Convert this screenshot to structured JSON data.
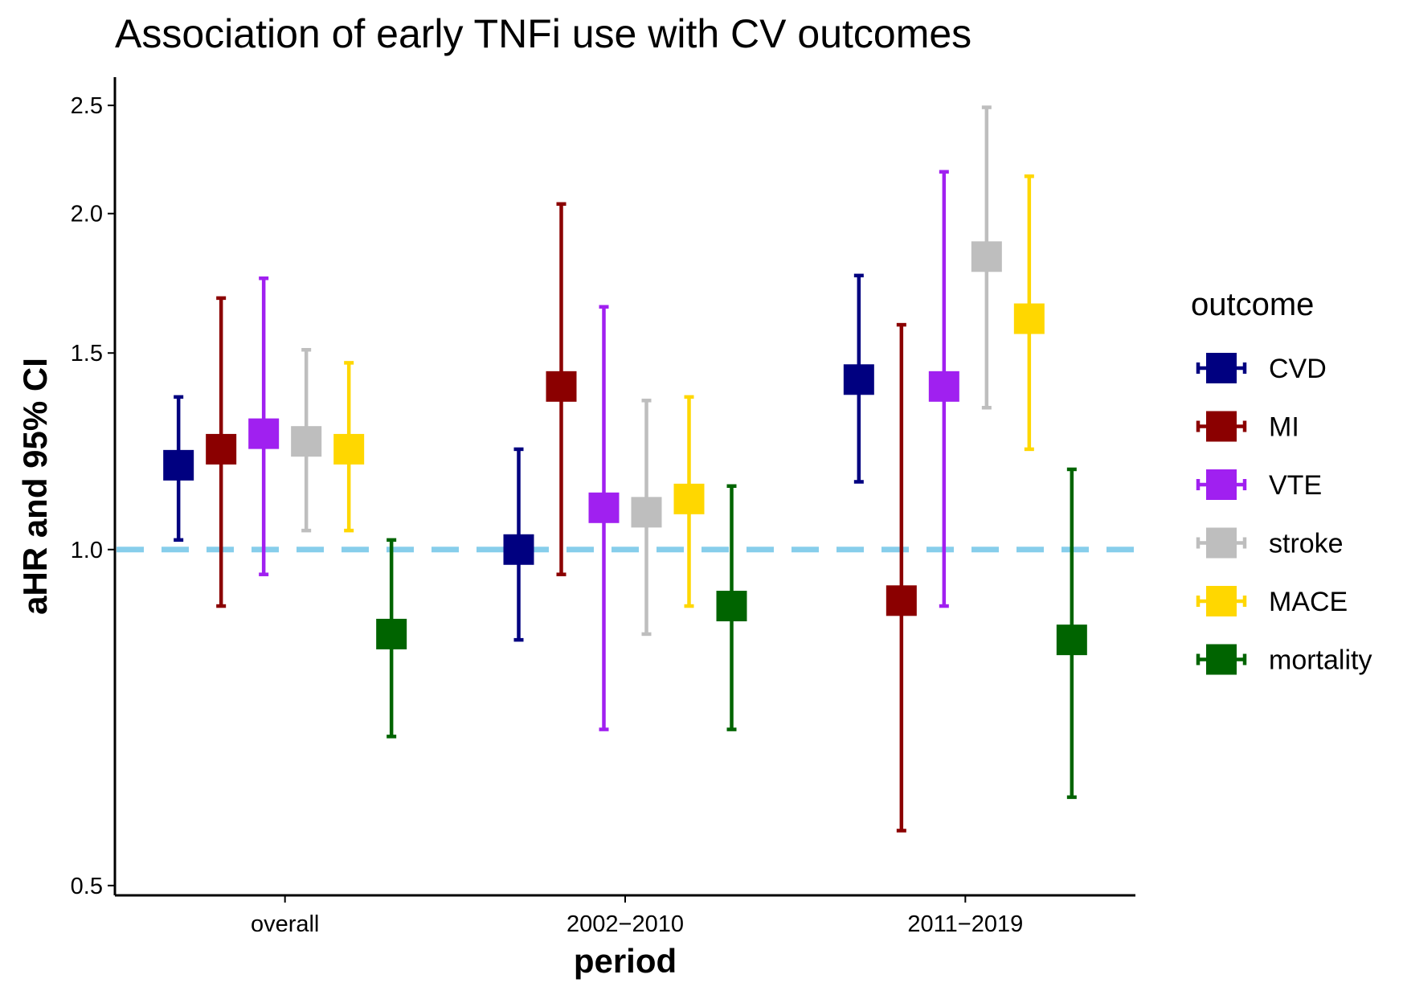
{
  "chart_data": {
    "type": "scatter",
    "subtype": "point-range / error-bar plot",
    "title": "Association of early TNFi use with CV outcomes",
    "xlabel": "period",
    "ylabel": "aHR and 95% CI",
    "y_scale": "log",
    "ylim": [
      0.49,
      2.65
    ],
    "y_ticks": [
      0.5,
      1.0,
      1.5,
      2.0,
      2.5
    ],
    "y_tick_labels": [
      "0.5",
      "1.0",
      "1.5",
      "2.0",
      "2.5"
    ],
    "categories": [
      "overall",
      "2002−2010",
      "2011−2019"
    ],
    "reference_line": {
      "y": 1.0,
      "color": "#87CEEB",
      "style": "dashed"
    },
    "grid": false,
    "legend": {
      "title": "outcome",
      "position": "right"
    },
    "series": [
      {
        "name": "CVD",
        "color": "#000080",
        "values": [
          1.19,
          1.0,
          1.42
        ],
        "lower": [
          1.02,
          0.83,
          1.15
        ],
        "upper": [
          1.37,
          1.23,
          1.76
        ]
      },
      {
        "name": "MI",
        "color": "#8B0000",
        "values": [
          1.23,
          1.4,
          0.9
        ],
        "lower": [
          0.89,
          0.95,
          0.56
        ],
        "upper": [
          1.68,
          2.04,
          1.59
        ]
      },
      {
        "name": "VTE",
        "color": "#A020F0",
        "values": [
          1.27,
          1.09,
          1.4
        ],
        "lower": [
          0.95,
          0.69,
          0.89
        ],
        "upper": [
          1.75,
          1.65,
          2.18
        ]
      },
      {
        "name": "stroke",
        "color": "#BEBEBE",
        "values": [
          1.25,
          1.08,
          1.83
        ],
        "lower": [
          1.04,
          0.84,
          1.34
        ],
        "upper": [
          1.51,
          1.36,
          2.49
        ]
      },
      {
        "name": "MACE",
        "color": "#FFD700",
        "values": [
          1.23,
          1.11,
          1.61
        ],
        "lower": [
          1.04,
          0.89,
          1.23
        ],
        "upper": [
          1.47,
          1.37,
          2.16
        ]
      },
      {
        "name": "mortality",
        "color": "#006400",
        "values": [
          0.84,
          0.89,
          0.83
        ],
        "lower": [
          0.68,
          0.69,
          0.6
        ],
        "upper": [
          1.02,
          1.14,
          1.18
        ]
      }
    ]
  }
}
